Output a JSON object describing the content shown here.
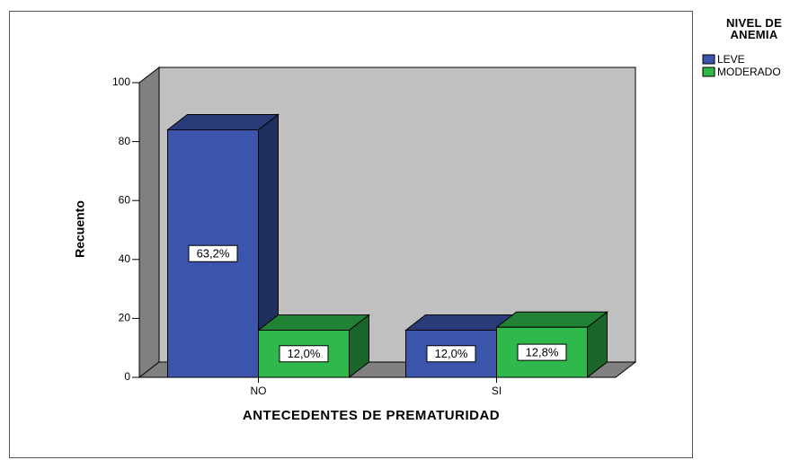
{
  "chart_data": {
    "type": "bar3d",
    "x_label": "ANTECEDENTES DE PREMATURIDAD",
    "y_label": "Recuento",
    "legend_title": "NIVEL DE ANEMIA",
    "legend": "right",
    "categories": [
      "NO",
      "SI"
    ],
    "series": [
      {
        "name": "LEVE",
        "color": "#3a55ab",
        "values": [
          84,
          16
        ],
        "value_labels": [
          "63,2%",
          "12,0%"
        ]
      },
      {
        "name": "MODERADO",
        "color": "#2fb84b",
        "values": [
          16,
          17
        ],
        "value_labels": [
          "12,0%",
          "12,8%"
        ]
      }
    ],
    "ylim": [
      0,
      100
    ],
    "yticks": [
      0,
      20,
      40,
      60,
      80,
      100
    ]
  }
}
